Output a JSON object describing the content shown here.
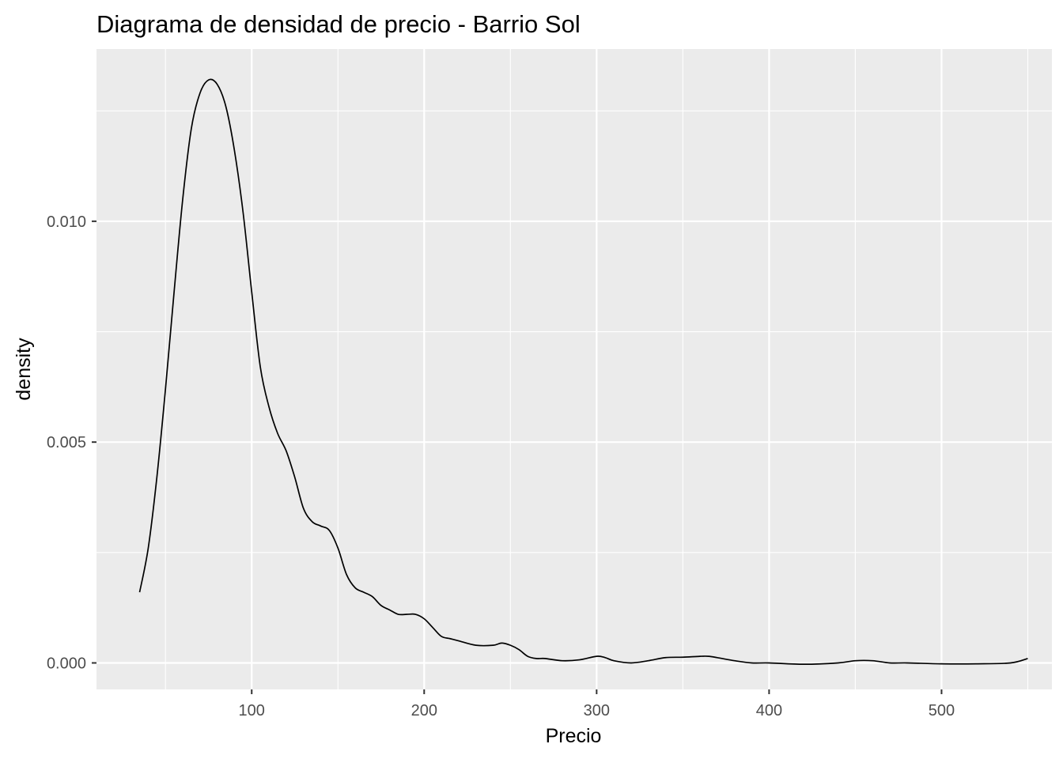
{
  "chart_data": {
    "type": "line",
    "title": "Diagrama de densidad de precio - Barrio Sol",
    "xlabel": "Precio",
    "ylabel": "density",
    "xlim": [
      10,
      564
    ],
    "ylim": [
      -0.0006,
      0.0139
    ],
    "x_ticks": [
      100,
      200,
      300,
      400,
      500
    ],
    "y_ticks": [
      0.0,
      0.005,
      0.01
    ],
    "x_tick_labels": [
      "100",
      "200",
      "300",
      "400",
      "500"
    ],
    "y_tick_labels": [
      "0.000",
      "0.005",
      "0.010"
    ],
    "grid": true,
    "legend": "none",
    "colors": {
      "panel_background": "#ebebeb",
      "grid": "#ffffff",
      "line": "#000000",
      "tick_label": "#4d4d4d"
    },
    "series": [
      {
        "x": [
          35,
          40,
          45,
          50,
          55,
          60,
          65,
          70,
          75,
          80,
          85,
          90,
          95,
          100,
          105,
          110,
          115,
          120,
          125,
          130,
          135,
          140,
          145,
          150,
          155,
          160,
          165,
          170,
          175,
          180,
          185,
          190,
          195,
          200,
          205,
          210,
          215,
          220,
          230,
          240,
          245,
          250,
          255,
          260,
          265,
          270,
          280,
          290,
          300,
          305,
          310,
          320,
          330,
          340,
          350,
          360,
          365,
          370,
          380,
          390,
          400,
          420,
          440,
          450,
          460,
          470,
          480,
          500,
          520,
          540,
          550
        ],
        "y": [
          0.0016,
          0.0026,
          0.0042,
          0.0062,
          0.0084,
          0.0105,
          0.0121,
          0.0129,
          0.0132,
          0.0131,
          0.0126,
          0.0116,
          0.0102,
          0.0084,
          0.0067,
          0.0058,
          0.0052,
          0.0048,
          0.0042,
          0.0035,
          0.0032,
          0.0031,
          0.003,
          0.0026,
          0.002,
          0.0017,
          0.0016,
          0.0015,
          0.0013,
          0.0012,
          0.0011,
          0.0011,
          0.0011,
          0.001,
          0.0008,
          0.0006,
          0.00055,
          0.0005,
          0.0004,
          0.0004,
          0.00045,
          0.0004,
          0.0003,
          0.00015,
          0.0001,
          0.0001,
          5e-05,
          7e-05,
          0.00015,
          0.00012,
          5e-05,
          0.0,
          5e-05,
          0.00012,
          0.00013,
          0.00015,
          0.00015,
          0.00012,
          5e-05,
          0.0,
          0.0,
          -3e-05,
          0.0,
          5e-05,
          5e-05,
          0.0,
          0.0,
          -2e-05,
          -2e-05,
          0.0,
          0.0001
        ]
      }
    ]
  }
}
